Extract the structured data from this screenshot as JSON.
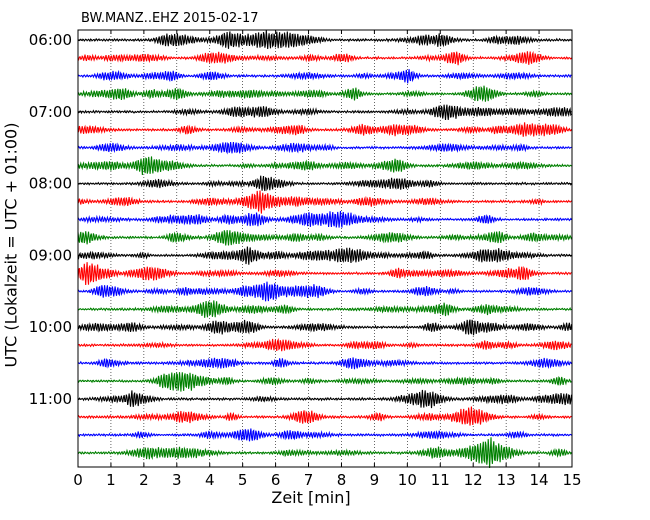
{
  "chart_data": {
    "type": "line",
    "title": "BW.MANZ..EHZ 2015-02-17",
    "xlabel": "Zeit  [min]",
    "ylabel": "UTC (Lokalzeit = UTC + 01:00)",
    "xlim": [
      0,
      15
    ],
    "xticks": [
      "0",
      "1",
      "2",
      "3",
      "4",
      "5",
      "6",
      "7",
      "8",
      "9",
      "10",
      "11",
      "12",
      "13",
      "14",
      "15"
    ],
    "yticks": [
      "06:00",
      "07:00",
      "08:00",
      "09:00",
      "10:00",
      "11:00"
    ],
    "grid": "vertical dotted",
    "trace_interval_minutes": 15,
    "trace_count": 24,
    "trace_colors": [
      "#000000",
      "#ff0000",
      "#0000ff",
      "#008000"
    ]
  }
}
